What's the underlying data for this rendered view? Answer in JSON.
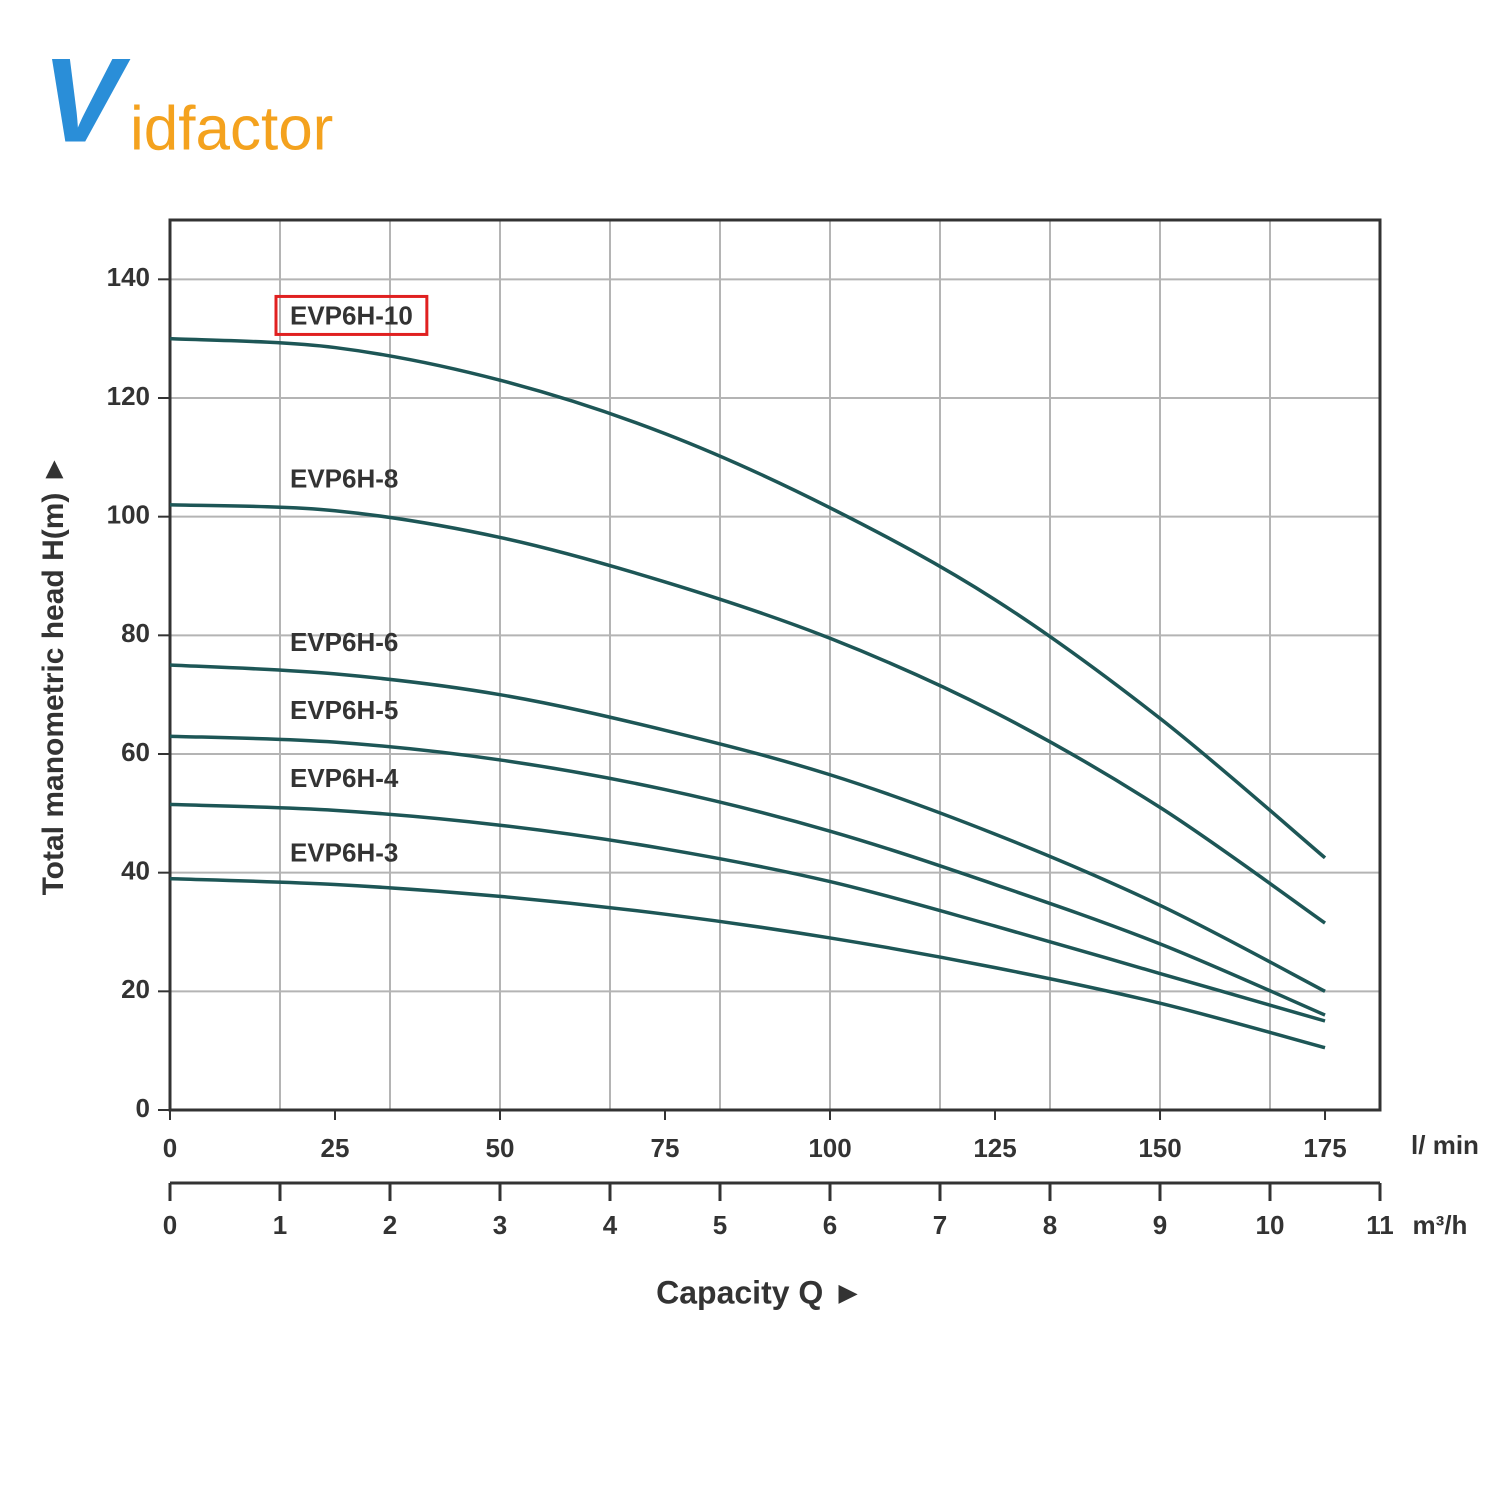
{
  "logo": {
    "first": "V",
    "rest": "idfactor"
  },
  "chart_data": {
    "type": "line",
    "xlabel": "Capacity Q ►",
    "ylabel": "Total manometric head H(m) ►",
    "x_unit": "l/ min",
    "x2_unit": "m³/h",
    "x": [
      0,
      25,
      50,
      75,
      100,
      125,
      150,
      175
    ],
    "xlim": [
      0,
      183.33
    ],
    "xticks": [
      0,
      25,
      50,
      75,
      100,
      125,
      150,
      175
    ],
    "x2lim": [
      0,
      11
    ],
    "x2ticks": [
      0,
      1,
      2,
      3,
      4,
      5,
      6,
      7,
      8,
      9,
      10,
      11
    ],
    "ylim": [
      0,
      150
    ],
    "yticks": [
      0,
      20,
      40,
      60,
      80,
      100,
      120,
      140
    ],
    "grid": true,
    "highlight": "EVP6H-10",
    "series": [
      {
        "name": "EVP6H-10",
        "color": "#1d5656",
        "values": [
          130,
          128.5,
          123,
          114,
          101.5,
          86,
          66,
          42.5
        ]
      },
      {
        "name": "EVP6H-8",
        "color": "#1d5656",
        "values": [
          102,
          101,
          96.5,
          89,
          79.5,
          67,
          51,
          31.5
        ]
      },
      {
        "name": "EVP6H-6",
        "color": "#1d5656",
        "values": [
          75,
          73.5,
          70,
          64,
          56.5,
          46.5,
          34.5,
          20
        ]
      },
      {
        "name": "EVP6H-5",
        "color": "#1d5656",
        "values": [
          63,
          62,
          59,
          54,
          47,
          38,
          28,
          16
        ]
      },
      {
        "name": "EVP6H-4",
        "color": "#1d5656",
        "values": [
          51.5,
          50.5,
          48,
          44,
          38.5,
          31,
          23,
          15
        ]
      },
      {
        "name": "EVP6H-3",
        "color": "#1d5656",
        "values": [
          39,
          38,
          36,
          33,
          29,
          24,
          18,
          10.5
        ]
      }
    ]
  }
}
